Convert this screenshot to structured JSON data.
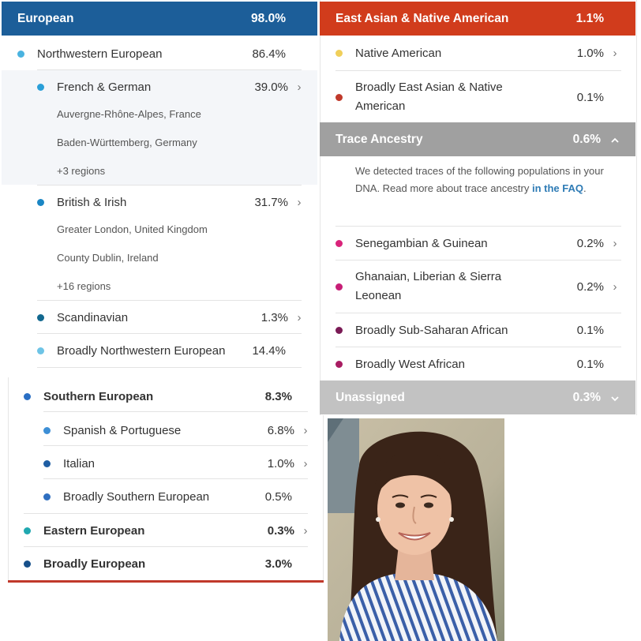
{
  "colors": {
    "european_header": "#1c5e99",
    "eastasian_header": "#d13c1c",
    "trace_header": "#a0a0a0",
    "unassigned_header": "#c2c2c2",
    "bottom_border": "#c0392b"
  },
  "european": {
    "header": {
      "label": "European",
      "pct": "98.0%"
    },
    "northwestern": {
      "label": "Northwestern European",
      "pct": "86.4%",
      "dot": "#4ab3e0",
      "french_german": {
        "label": "French & German",
        "pct": "39.0%",
        "dot": "#2a9fd8",
        "regions": [
          {
            "name": "Auvergne-Rhône-Alpes",
            "country": ", France"
          },
          {
            "name": "Baden-Württemberg",
            "country": ", Germany"
          }
        ],
        "more": "+3 regions"
      },
      "british_irish": {
        "label": "British & Irish",
        "pct": "31.7%",
        "dot": "#1a86c4",
        "regions": [
          {
            "name": "Greater London",
            "country": ", United Kingdom"
          },
          {
            "name": "County Dublin",
            "country": ", Ireland"
          }
        ],
        "more": "+16 regions"
      },
      "scandinavian": {
        "label": "Scandinavian",
        "pct": "1.3%",
        "dot": "#12688f"
      },
      "broadly_nw": {
        "label": "Broadly Northwestern European",
        "pct": "14.4%",
        "dot": "#6ec4e6"
      }
    },
    "southern": {
      "label": "Southern European",
      "pct": "8.3%",
      "dot": "#2a6fc4",
      "spanish": {
        "label": "Spanish & Portuguese",
        "pct": "6.8%",
        "dot": "#3d8fd6"
      },
      "italian": {
        "label": "Italian",
        "pct": "1.0%",
        "dot": "#1f5ea3"
      },
      "broadly_southern": {
        "label": "Broadly Southern European",
        "pct": "0.5%",
        "dot": "#2f6fc0"
      }
    },
    "eastern": {
      "label": "Eastern European",
      "pct": "0.3%",
      "dot": "#20a8b0"
    },
    "broadly_european": {
      "label": "Broadly European",
      "pct": "3.0%",
      "dot": "#17508a"
    }
  },
  "east_asian": {
    "header": {
      "label": "East Asian & Native American",
      "pct": "1.1%"
    },
    "native_american": {
      "label": "Native American",
      "pct": "1.0%",
      "dot": "#f0cf5a"
    },
    "broadly_ea": {
      "label": "Broadly East Asian & Native American",
      "label_line1": "Broadly East Asian & Native",
      "label_line2": "American",
      "pct": "0.1%",
      "dot": "#c0392b"
    }
  },
  "trace": {
    "header": {
      "label": "Trace Ancestry",
      "pct": "0.6%"
    },
    "note_text": "We detected traces of the following populations in your DNA. Read more about trace ancestry ",
    "note_link": "in the FAQ",
    "note_end": ".",
    "senegambian": {
      "label": "Senegambian & Guinean",
      "pct": "0.2%",
      "dot": "#d9237a"
    },
    "ghanaian": {
      "label_line1": "Ghanaian, Liberian & Sierra",
      "label_line2": "Leonean",
      "pct": "0.2%",
      "dot": "#c71e76"
    },
    "broadly_ssa": {
      "label": "Broadly Sub-Saharan African",
      "pct": "0.1%",
      "dot": "#7a1a55"
    },
    "broadly_wa": {
      "label": "Broadly West African",
      "pct": "0.1%",
      "dot": "#a81c62"
    }
  },
  "unassigned": {
    "label": "Unassigned",
    "pct": "0.3%"
  },
  "icons": {
    "chevron_right": "›",
    "chevron_up": "⌃",
    "chevron_down": "⌄"
  }
}
